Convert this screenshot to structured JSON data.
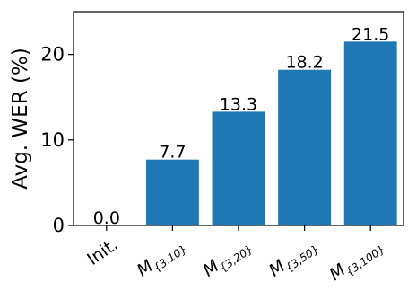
{
  "chart_data": {
    "type": "bar",
    "categories": [
      "Init.",
      "M{3,10}",
      "M{3,20}",
      "M{3,50}",
      "M{3,100}"
    ],
    "category_labels": [
      {
        "main": "Init.",
        "sub": ""
      },
      {
        "main": "M",
        "sub": "{3,10}"
      },
      {
        "main": "M",
        "sub": "{3,20}"
      },
      {
        "main": "M",
        "sub": "{3,50}"
      },
      {
        "main": "M",
        "sub": "{3,100}"
      }
    ],
    "values": [
      0.0,
      7.7,
      13.3,
      18.2,
      21.5
    ],
    "data_labels": [
      "0.0",
      "7.7",
      "13.3",
      "18.2",
      "21.5"
    ],
    "title": "",
    "xlabel": "",
    "ylabel": "Avg. WER (%)",
    "ylim": [
      0,
      25
    ],
    "yticks": [
      0,
      10,
      20
    ],
    "ytick_labels": [
      "0",
      "10",
      "20"
    ],
    "grid": false,
    "bar_color": "#1f77b4"
  }
}
